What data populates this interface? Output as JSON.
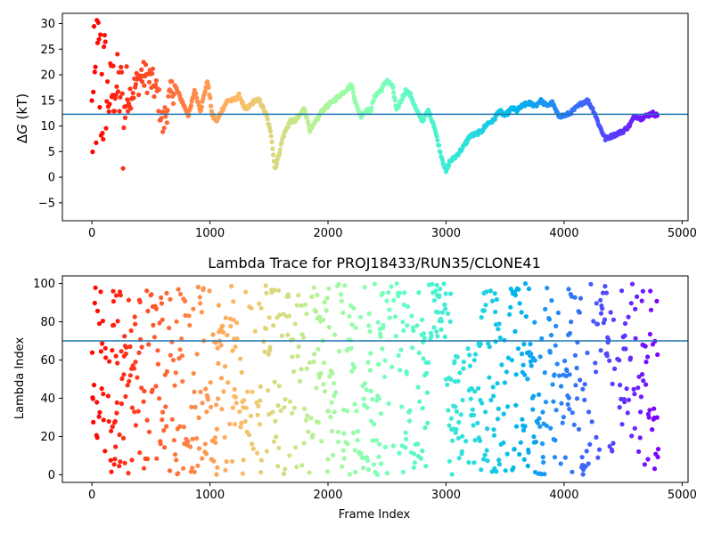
{
  "chart_data": [
    {
      "type": "scatter",
      "title": "",
      "xlabel": "",
      "ylabel": "ΔG (kT)",
      "ylabel_parts": {
        "symbol": "Δ",
        "var": "G",
        "unit": " (kT)"
      },
      "xlim": [
        -250,
        5050
      ],
      "ylim": [
        -8.5,
        32
      ],
      "xticks": [
        0,
        1000,
        2000,
        3000,
        4000,
        5000
      ],
      "yticks": [
        -5,
        0,
        5,
        10,
        15,
        20,
        25,
        30
      ],
      "hline": 12.3,
      "hline_color": "#1f77b4",
      "colormap": "rainbow (reversed along frame index: red at start, violet at end)",
      "series": [
        {
          "points_x": [
            0,
            50,
            120,
            200,
            280,
            350,
            420,
            500,
            560,
            600,
            640,
            700,
            760,
            820,
            870,
            920,
            980,
            1020,
            1060,
            1100,
            1150,
            1200,
            1250,
            1300,
            1340,
            1380,
            1420,
            1480,
            1520,
            1550,
            1580,
            1620,
            1680,
            1720,
            1760,
            1800,
            1850,
            1900,
            1950,
            2000,
            2050,
            2100,
            2150,
            2200,
            2240,
            2280,
            2320,
            2360,
            2400,
            2450,
            2500,
            2550,
            2580,
            2620,
            2660,
            2700,
            2750,
            2800,
            2850,
            2900,
            2950,
            3000,
            3030,
            3080,
            3150,
            3200,
            3260,
            3300,
            3350,
            3400,
            3450,
            3500,
            3560,
            3600,
            3650,
            3700,
            3760,
            3800,
            3850,
            3900,
            3950,
            4000,
            4050,
            4100,
            4150,
            4200,
            4250,
            4300,
            4350,
            4400,
            4450,
            4500,
            4550,
            4600,
            4650,
            4700,
            4750,
            4790
          ],
          "points_y": [
            10,
            20,
            15,
            18,
            15,
            17,
            20,
            19,
            16,
            10,
            14,
            18,
            15,
            12,
            17,
            13,
            19,
            12,
            11,
            13,
            15,
            15,
            16,
            13,
            14,
            15,
            15,
            12,
            8,
            1.5,
            4,
            8,
            11,
            11,
            12,
            13.5,
            9,
            11,
            13,
            14,
            15,
            16,
            17,
            18,
            14,
            12,
            13,
            13,
            16,
            17,
            19,
            17.5,
            13,
            15,
            17,
            16,
            13,
            11,
            13,
            10,
            5,
            1,
            3,
            4,
            6,
            8,
            8.5,
            9,
            10.5,
            11,
            13,
            12,
            13.5,
            13,
            14,
            14.5,
            14,
            15,
            14,
            14.5,
            12,
            12,
            12.5,
            13.5,
            14.5,
            15,
            13,
            10,
            7.5,
            8,
            8.5,
            9,
            10,
            12,
            11.5,
            12,
            12.5,
            12
          ]
        }
      ]
    },
    {
      "type": "scatter",
      "title": "Lambda Trace for PROJ18433/RUN35/CLONE41",
      "xlabel": "Frame Index",
      "ylabel": "Lambda Index",
      "xlim": [
        -250,
        5050
      ],
      "ylim": [
        -4,
        104
      ],
      "xticks": [
        0,
        1000,
        2000,
        3000,
        4000,
        5000
      ],
      "yticks": [
        0,
        20,
        40,
        60,
        80,
        100
      ],
      "hline": 70,
      "hline_color": "#1f77b4",
      "colormap": "rainbow (reversed along frame index: red at start, violet at end)",
      "note_frames": [
        0,
        4800
      ]
    }
  ]
}
